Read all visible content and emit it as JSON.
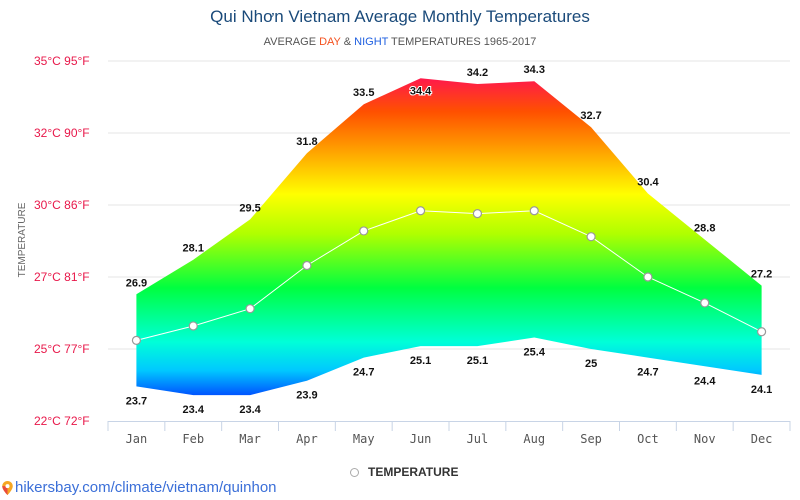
{
  "header": {
    "title": "Qui Nhơn Vietnam Average Monthly Temperatures",
    "subtitle_prefix": "AVERAGE ",
    "subtitle_day": "DAY",
    "subtitle_and": " & ",
    "subtitle_night": "NIGHT",
    "subtitle_suffix": " TEMPERATURES 1965-2017"
  },
  "colors": {
    "day_accent": "#f4511e",
    "night_accent": "#1e5fe0",
    "axis_label": "#e8184a",
    "title": "#1a4a7a",
    "link": "#3b6fd8"
  },
  "chart_data": {
    "type": "area",
    "title": "Qui Nhơn Vietnam Average Monthly Temperatures",
    "subtitle": "AVERAGE DAY & NIGHT TEMPERATURES 1965-2017",
    "xlabel": "",
    "ylabel": "TEMPERATURE",
    "categories": [
      "Jan",
      "Feb",
      "Mar",
      "Apr",
      "May",
      "Jun",
      "Jul",
      "Aug",
      "Sep",
      "Oct",
      "Nov",
      "Dec"
    ],
    "ylim": [
      22.5,
      35
    ],
    "grid": true,
    "yticks": [
      {
        "value": 35,
        "label": "35°C 95°F"
      },
      {
        "value": 32.5,
        "label": "32°C 90°F"
      },
      {
        "value": 30,
        "label": "30°C 86°F"
      },
      {
        "value": 27.5,
        "label": "27°C 81°F"
      },
      {
        "value": 25,
        "label": "25°C 77°F"
      },
      {
        "value": 22.5,
        "label": "22°C 72°F"
      }
    ],
    "series": [
      {
        "name": "Day (high)",
        "values": [
          26.9,
          28.1,
          29.5,
          31.8,
          33.5,
          34.4,
          34.2,
          34.3,
          32.7,
          30.4,
          28.8,
          27.2
        ],
        "labels": [
          "26.9",
          "28.1",
          "29.5",
          "31.8",
          "33.5",
          "34.4",
          "34.2",
          "34.3",
          "32.7",
          "30.4",
          "28.8",
          "27.2"
        ]
      },
      {
        "name": "Night (low)",
        "values": [
          23.7,
          23.4,
          23.4,
          23.9,
          24.7,
          25.1,
          25.1,
          25.4,
          25.0,
          24.7,
          24.4,
          24.1
        ],
        "labels": [
          "23.7",
          "23.4",
          "23.4",
          "23.9",
          "24.7",
          "25.1",
          "25.1",
          "25.4",
          "25",
          "24.7",
          "24.4",
          "24.1"
        ]
      },
      {
        "name": "TEMPERATURE",
        "values": [
          25.3,
          25.8,
          26.4,
          27.9,
          29.1,
          29.8,
          29.7,
          29.8,
          28.9,
          27.5,
          26.6,
          25.6
        ]
      }
    ],
    "legend": {
      "position": "bottom-center",
      "entries": [
        "TEMPERATURE"
      ]
    }
  },
  "legend": {
    "label": "TEMPERATURE"
  },
  "footer": {
    "link_text": "hikersbay.com/climate/vietnam/quinhon",
    "icon": "map-pin-icon"
  }
}
